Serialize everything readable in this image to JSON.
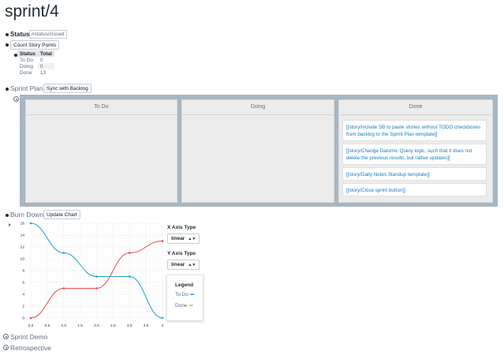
{
  "page": {
    "title": "sprint/4"
  },
  "status": {
    "label": "Status:",
    "tag": "#status/closed"
  },
  "story_points": {
    "button": "Count Story Points",
    "headers": [
      "Status",
      "Total"
    ],
    "rows": [
      [
        "To Do",
        "0"
      ],
      [
        "Doing",
        "0"
      ],
      [
        "Done",
        "13"
      ]
    ]
  },
  "sprint_plan": {
    "label": "Sprint Plan",
    "button": "Sync with Backlog",
    "columns": [
      {
        "title": "To Do",
        "cards": []
      },
      {
        "title": "Doing",
        "cards": []
      },
      {
        "title": "Done",
        "cards": [
          "[[story/Include SB to paste stories without TODO checkboxes from backlog to the Sprint Plan template]]",
          "[[story/Change Datomic Query logic, such that it does not delete the previous results, but rather updates]]",
          "[[story/Daily Notes Standup template]]",
          "[[story/Close sprint button]]"
        ]
      }
    ]
  },
  "burn_down": {
    "label": "Burn Down",
    "button": "Update Chart",
    "x_axis_type_label": "X Axis Type",
    "x_axis_type_value": "linear",
    "y_axis_type_label": "Y Axis Type",
    "y_axis_type_value": "linear",
    "legend": {
      "title": "Legend",
      "todo": "To Do",
      "done": "Done"
    }
  },
  "chart_data": {
    "type": "line",
    "xlim": [
      0,
      4
    ],
    "ylim": [
      0,
      16
    ],
    "xticks": [
      "0.0",
      "0.5",
      "1.0",
      "1.5",
      "2.0",
      "2.5",
      "3.0",
      "3.5",
      "4"
    ],
    "yticks": [
      "0",
      "2",
      "4",
      "6",
      "8",
      "10",
      "12",
      "14",
      "16"
    ],
    "grid": true,
    "legend_position": "right",
    "series": [
      {
        "name": "To Do",
        "color": "#1f9fd6",
        "x": [
          0,
          1,
          2,
          3,
          4
        ],
        "y": [
          16,
          11,
          7,
          7,
          0
        ]
      },
      {
        "name": "Done",
        "color": "#e8464f",
        "x": [
          0,
          1,
          2,
          3,
          4
        ],
        "y": [
          0,
          5,
          5,
          11,
          13
        ]
      }
    ]
  },
  "sections": {
    "demo": "Sprint Demo",
    "retro": "Retrospective"
  }
}
